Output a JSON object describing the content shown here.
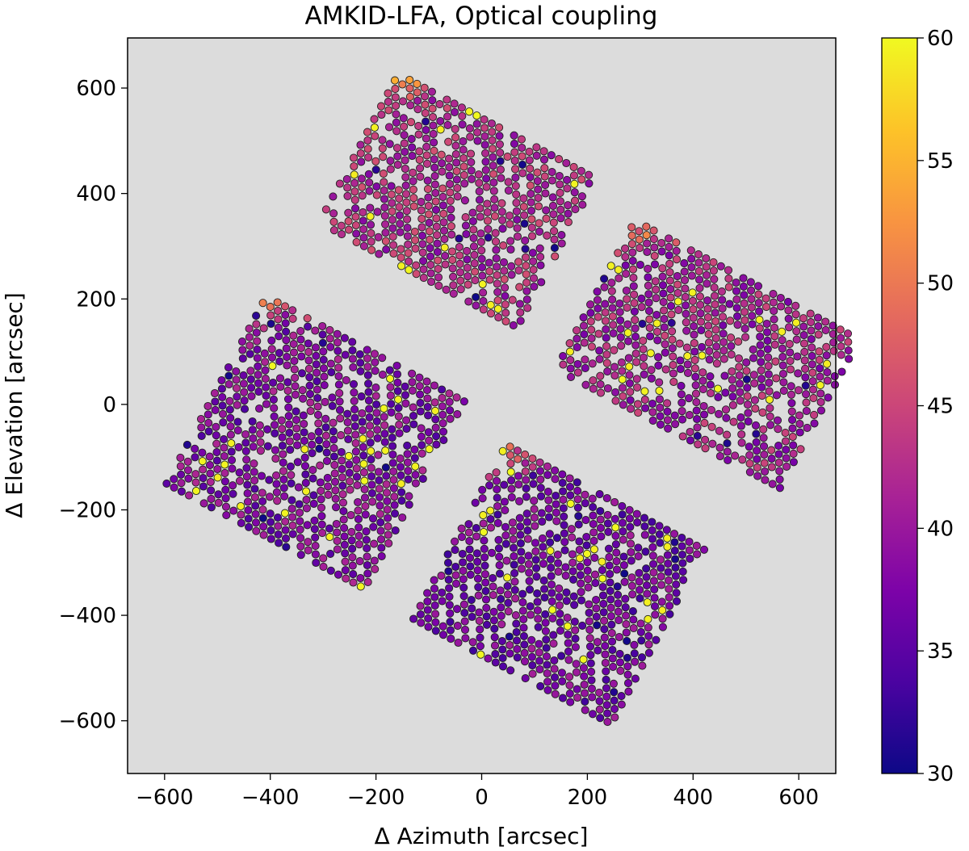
{
  "chart_data": {
    "type": "scatter",
    "title": "AMKID-LFA, Optical coupling",
    "xlabel": "Δ Azimuth [arcsec]",
    "ylabel": "Δ Elevation [arcsec]",
    "xlim": [
      -670,
      670
    ],
    "ylim": [
      -700,
      695
    ],
    "xticks": [
      -600,
      -400,
      -200,
      0,
      200,
      400,
      600
    ],
    "yticks": [
      -600,
      -400,
      -200,
      0,
      200,
      400,
      600
    ],
    "xtick_labels": [
      "−600",
      "−400",
      "−200",
      "0",
      "200",
      "400",
      "600"
    ],
    "ytick_labels": [
      "−600",
      "−400",
      "−200",
      "0",
      "200",
      "400",
      "600"
    ],
    "background_color": "#dcdcdc",
    "colormap": "plasma",
    "colorbar": {
      "min": 30,
      "max": 60,
      "ticks": [
        30,
        35,
        40,
        45,
        50,
        55,
        60
      ],
      "tick_labels": [
        "30",
        "35",
        "40",
        "45",
        "50",
        "55",
        "60"
      ]
    },
    "subarrays": [
      {
        "name": "top-left",
        "center": [
          -40,
          390
        ],
        "angle_deg": -28,
        "width": 430,
        "height": 330,
        "mean_coupling": 42,
        "edge_high_side": "top-left"
      },
      {
        "name": "right",
        "center": [
          430,
          100
        ],
        "angle_deg": -28,
        "width": 480,
        "height": 330,
        "mean_coupling": 41,
        "edge_high_side": "top-left"
      },
      {
        "name": "left",
        "center": [
          -310,
          -70
        ],
        "angle_deg": -28,
        "width": 430,
        "height": 410,
        "mean_coupling": 38,
        "edge_high_side": "left"
      },
      {
        "name": "bottom",
        "center": [
          150,
          -340
        ],
        "angle_deg": -28,
        "width": 430,
        "height": 380,
        "mean_coupling": 37,
        "edge_high_side": "top-left"
      }
    ],
    "point_spacing_arcsec": 16,
    "value_range": [
      30,
      60
    ]
  }
}
